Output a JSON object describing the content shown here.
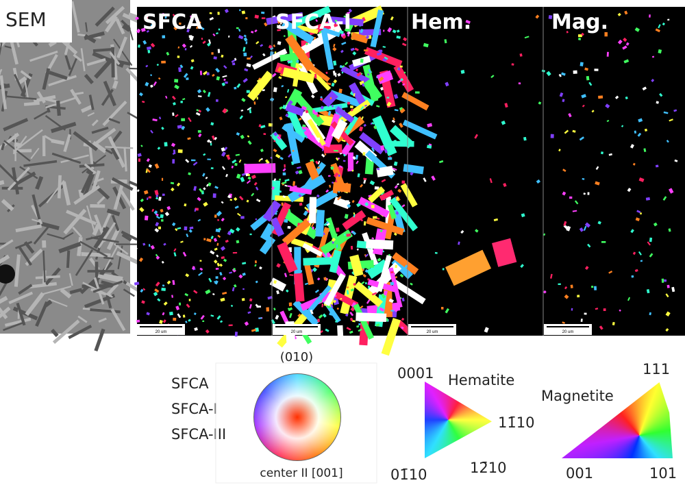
{
  "panels": {
    "sem": "SEM",
    "sfca": "SFCA",
    "sfca_i": "SFCA-I",
    "hem": "Hem.",
    "mag": "Mag."
  },
  "scale_bars": [
    "20 um",
    "20 um",
    "20 um",
    "20 um"
  ],
  "legend": {
    "phases": [
      "SFCA",
      "SFCA-I",
      "SFCA-III"
    ],
    "circle_top": "(010)",
    "circle_bottom": "center II [001]",
    "hematite": {
      "title": "Hematite",
      "corners": [
        "0001",
        "11̄10",
        "12̄10",
        "01̄10"
      ]
    },
    "magnetite": {
      "title": "Magnetite",
      "corners": [
        "111",
        "001",
        "101"
      ]
    }
  }
}
